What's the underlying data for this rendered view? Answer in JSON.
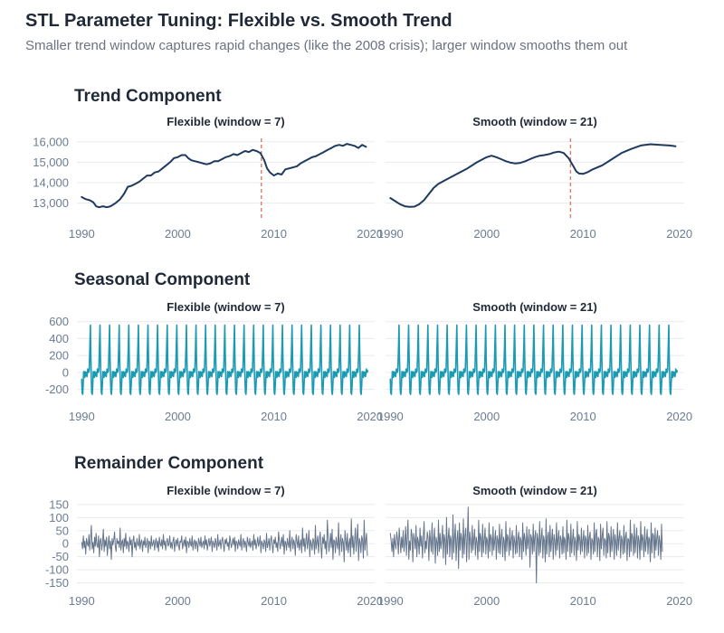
{
  "header": {
    "title": "STL Parameter Tuning: Flexible vs. Smooth Trend",
    "subtitle": "Smaller trend window captures rapid changes (like the 2008 crisis); larger window smooths them out"
  },
  "colors": {
    "trend": "#1e3a5f",
    "seasonal": "#1a9bb3",
    "remainder": "#64748b",
    "crisis_marker": "#e07b6a",
    "grid": "#e8ebef",
    "text": "#1f2937",
    "axis_text": "#6b7c93"
  },
  "chart_data": [
    {
      "id": "trend",
      "type": "line",
      "title": "Trend Component",
      "x_ticks": [
        1990,
        2000,
        2010,
        2020
      ],
      "x_tick_labels": [
        "1990",
        "2000",
        "2010",
        "2020"
      ],
      "xlim": [
        1989.5,
        2020.5
      ],
      "y_ticks": [
        13000,
        14000,
        15000,
        16000
      ],
      "y_tick_labels": [
        "13,000",
        "14,000",
        "15,000",
        "16,000"
      ],
      "ylim": [
        12500,
        16300
      ],
      "vline": 2008.7,
      "series": [
        {
          "name": "Flexible (window = 7)",
          "x": [
            1990,
            1990.4,
            1990.8,
            1991.2,
            1991.5,
            1991.8,
            1992.2,
            1992.6,
            1993.0,
            1993.5,
            1994.0,
            1994.4,
            1994.8,
            1995.2,
            1995.6,
            1996.0,
            1996.4,
            1996.8,
            1997.2,
            1997.6,
            1998.0,
            1998.4,
            1998.8,
            1999.2,
            1999.6,
            2000.0,
            2000.4,
            2000.8,
            2001.1,
            2001.4,
            2001.8,
            2002.2,
            2002.6,
            2003.0,
            2003.4,
            2003.8,
            2004.2,
            2004.6,
            2005.0,
            2005.4,
            2005.8,
            2006.2,
            2006.6,
            2007.0,
            2007.4,
            2007.8,
            2008.2,
            2008.6,
            2009.0,
            2009.3,
            2009.6,
            2010.0,
            2010.4,
            2010.8,
            2011.2,
            2011.6,
            2012.0,
            2012.4,
            2012.8,
            2013.2,
            2013.6,
            2014.0,
            2014.4,
            2014.8,
            2015.2,
            2015.6,
            2016.0,
            2016.4,
            2016.8,
            2017.2,
            2017.6,
            2018.0,
            2018.4,
            2018.8,
            2019.2,
            2019.6
          ],
          "values": [
            13300,
            13200,
            13150,
            13050,
            12850,
            12800,
            12850,
            12800,
            12850,
            13000,
            13200,
            13450,
            13800,
            13850,
            13950,
            14050,
            14200,
            14350,
            14350,
            14500,
            14550,
            14700,
            14850,
            15000,
            15200,
            15250,
            15350,
            15350,
            15200,
            15100,
            15050,
            15000,
            14950,
            14900,
            14950,
            15050,
            15050,
            15150,
            15250,
            15300,
            15400,
            15350,
            15450,
            15550,
            15500,
            15600,
            15550,
            15450,
            15100,
            14700,
            14500,
            14350,
            14450,
            14400,
            14650,
            14700,
            14750,
            14800,
            14950,
            15050,
            15150,
            15250,
            15300,
            15400,
            15500,
            15600,
            15700,
            15800,
            15850,
            15800,
            15900,
            15850,
            15800,
            15700,
            15850,
            15750
          ]
        },
        {
          "name": "Smooth (window = 21)",
          "x": [
            1990,
            1990.5,
            1991.0,
            1991.5,
            1992.0,
            1992.5,
            1993.0,
            1993.5,
            1994.0,
            1994.5,
            1995.0,
            1996.0,
            1997.0,
            1998.0,
            1999.0,
            2000.0,
            2000.5,
            2001.0,
            2001.5,
            2002.0,
            2002.5,
            2003.0,
            2003.5,
            2004.0,
            2004.5,
            2005.0,
            2005.5,
            2006.0,
            2006.5,
            2007.0,
            2007.5,
            2008.0,
            2008.5,
            2009.0,
            2009.3,
            2009.6,
            2010.0,
            2010.5,
            2011.0,
            2012.0,
            2013.0,
            2014.0,
            2015.0,
            2016.0,
            2017.0,
            2018.0,
            2019.0,
            2019.6
          ],
          "values": [
            13250,
            13100,
            12950,
            12850,
            12820,
            12830,
            12950,
            13150,
            13450,
            13750,
            13950,
            14200,
            14450,
            14700,
            15000,
            15250,
            15320,
            15250,
            15150,
            15050,
            14980,
            14940,
            14970,
            15050,
            15150,
            15250,
            15320,
            15350,
            15400,
            15480,
            15520,
            15450,
            15200,
            14800,
            14550,
            14450,
            14430,
            14520,
            14650,
            14850,
            15150,
            15450,
            15650,
            15820,
            15880,
            15850,
            15820,
            15780
          ]
        }
      ]
    },
    {
      "id": "seasonal",
      "type": "line",
      "title": "Seasonal Component",
      "x_ticks": [
        1990,
        2000,
        2010,
        2020
      ],
      "x_tick_labels": [
        "1990",
        "2000",
        "2010",
        "2020"
      ],
      "xlim": [
        1989.5,
        2020.5
      ],
      "y_ticks": [
        -200,
        0,
        200,
        400,
        600
      ],
      "y_tick_labels": [
        "-200",
        "0",
        "200",
        "400",
        "600"
      ],
      "ylim": [
        -280,
        640
      ],
      "cycle_start": 1990,
      "cycle_count": 30,
      "cycle_pattern_t": [
        0,
        0.04,
        0.1,
        0.15,
        0.2,
        0.25,
        0.32,
        0.36,
        0.42,
        0.48,
        0.55,
        0.63,
        0.72,
        0.78,
        0.84,
        0.9,
        0.95,
        1.0
      ],
      "cycle_pattern_v": [
        -80,
        -240,
        -260,
        -150,
        10,
        0,
        -60,
        10,
        -40,
        0,
        -50,
        40,
        0,
        20,
        270,
        560,
        180,
        -80
      ],
      "series": [
        {
          "name": "Flexible (window = 7)"
        },
        {
          "name": "Smooth (window = 21)"
        }
      ]
    },
    {
      "id": "remainder",
      "type": "line",
      "title": "Remainder Component",
      "x_ticks": [
        1990,
        2000,
        2010,
        2020
      ],
      "x_tick_labels": [
        "1990",
        "2000",
        "2010",
        "2020"
      ],
      "xlim": [
        1989.5,
        2020.5
      ],
      "y_ticks": [
        -150,
        -100,
        -50,
        0,
        50,
        100,
        150
      ],
      "y_tick_labels": [
        "-150",
        "-100",
        "-50",
        "0",
        "50",
        "100",
        "150"
      ],
      "ylim": [
        -155,
        160
      ],
      "x_start": 1990,
      "x_step": 0.0833,
      "series": [
        {
          "name": "Flexible (window = 7)",
          "values": [
            5,
            -20,
            30,
            -15,
            10,
            -40,
            20,
            0,
            -10,
            35,
            -25,
            15,
            70,
            -20,
            5,
            -35,
            25,
            -10,
            40,
            -5,
            -15,
            30,
            -50,
            10,
            20,
            -25,
            5,
            55,
            -30,
            15,
            -10,
            25,
            -45,
            0,
            30,
            -20,
            10,
            -60,
            20,
            -5,
            15,
            45,
            -10,
            -30,
            20,
            0,
            10,
            -15,
            60,
            -25,
            5,
            15,
            -35,
            20,
            -10,
            40,
            -20,
            10,
            0,
            -30,
            25,
            -5,
            15,
            -50,
            10,
            30,
            -15,
            5,
            -25,
            20,
            0,
            -10,
            35,
            -20,
            5,
            15,
            -30,
            10,
            -5,
            25,
            -15,
            0,
            20,
            -35,
            10,
            5,
            -20,
            30,
            -10,
            0,
            15,
            -25,
            5,
            20,
            -15,
            10,
            -30,
            25,
            0,
            -10,
            15,
            -20,
            35,
            -5,
            10,
            -25,
            5,
            20,
            -10,
            0,
            30,
            -15,
            5,
            -20,
            10,
            25,
            -30,
            0,
            15,
            -10,
            20,
            -5,
            -25,
            10,
            5,
            30,
            -20,
            0,
            15,
            -10,
            25,
            -35,
            10,
            5,
            -15,
            20,
            0,
            -10,
            30,
            -25,
            5,
            15,
            -20,
            10,
            0,
            -30,
            20,
            5,
            -10,
            25,
            -15,
            0,
            10,
            -20,
            30,
            -5,
            15,
            -25,
            0,
            20,
            -10,
            5,
            25,
            -30,
            10,
            0,
            -15,
            20,
            5,
            -25,
            35,
            -10,
            0,
            15,
            -20,
            10,
            25,
            -5,
            -30,
            15,
            0,
            20,
            -10,
            5,
            -25,
            30,
            10,
            -15,
            0,
            20,
            -5,
            25,
            -30,
            10,
            5,
            -20,
            15,
            0,
            -10,
            35,
            -25,
            5,
            20,
            -15,
            10,
            0,
            -30,
            25,
            5,
            -10,
            20,
            -15,
            0,
            10,
            -25,
            35,
            -5,
            15,
            -20,
            0,
            25,
            -10,
            5,
            30,
            -35,
            10,
            0,
            -20,
            15,
            5,
            -30,
            40,
            -15,
            0,
            20,
            -25,
            10,
            30,
            -5,
            -35,
            15,
            0,
            25,
            -15,
            5,
            -30,
            45,
            10,
            -20,
            0,
            25,
            -10,
            35,
            -40,
            10,
            5,
            -25,
            20,
            0,
            -15,
            50,
            -30,
            5,
            25,
            -20,
            15,
            0,
            -45,
            35,
            10,
            -15,
            30,
            -25,
            0,
            15,
            -35,
            60,
            -10,
            20,
            -30,
            5,
            40,
            -20,
            10,
            50,
            -50,
            15,
            0,
            -25,
            20,
            10,
            -40,
            70,
            -20,
            5,
            30,
            -35,
            15,
            45,
            -10,
            -55,
            25,
            0,
            35,
            -20,
            10,
            -40,
            90,
            20,
            -30,
            5,
            40,
            -15,
            55,
            -60,
            15,
            10,
            -35,
            25,
            0,
            -20,
            80,
            -45,
            10,
            35,
            -30,
            20,
            5,
            -70,
            50,
            15,
            -25,
            40,
            -35,
            0,
            20,
            -50,
            95,
            -15,
            30,
            -40,
            10,
            60,
            -30,
            15,
            75,
            -65,
            20,
            5,
            -35,
            30,
            15,
            -55,
            90,
            -25,
            10,
            40,
            -45,
            20,
            65,
            -15
          ]
        },
        {
          "name": "Smooth (window = 21)",
          "values": [
            40,
            10,
            -30,
            20,
            -50,
            35,
            0,
            -20,
            45,
            15,
            -40,
            60,
            10,
            -35,
            25,
            -15,
            50,
            -30,
            5,
            65,
            -45,
            20,
            90,
            -60,
            10,
            -25,
            55,
            30,
            -70,
            40,
            15,
            -20,
            70,
            -50,
            25,
            5,
            -40,
            60,
            -10,
            30,
            -55,
            20,
            85,
            -35,
            10,
            -20,
            45,
            25,
            -65,
            50,
            10,
            -30,
            80,
            -40,
            15,
            60,
            -75,
            25,
            5,
            -45,
            90,
            -30,
            40,
            -20,
            10,
            70,
            -55,
            35,
            15,
            -80,
            100,
            -40,
            20,
            60,
            -50,
            30,
            10,
            -60,
            110,
            -35,
            25,
            75,
            -65,
            15,
            50,
            -95,
            80,
            -25,
            40,
            20,
            -55,
            95,
            -40,
            30,
            60,
            -70,
            20,
            140,
            -60,
            45,
            10,
            -35,
            70,
            -25,
            15,
            55,
            -45,
            25,
            5,
            -60,
            90,
            -30,
            40,
            20,
            -50,
            75,
            -35,
            15,
            60,
            -40,
            25,
            10,
            -55,
            80,
            -30,
            35,
            20,
            -45,
            65,
            -25,
            10,
            50,
            -60,
            30,
            15,
            -35,
            75,
            -40,
            20,
            55,
            -50,
            25,
            10,
            -65,
            85,
            -30,
            35,
            20,
            -45,
            60,
            -25,
            15,
            50,
            -55,
            30,
            5,
            -40,
            70,
            -35,
            20,
            45,
            -50,
            25,
            10,
            -60,
            80,
            -30,
            40,
            15,
            -45,
            65,
            -20,
            10,
            55,
            -90,
            35,
            20,
            -40,
            75,
            -30,
            25,
            50,
            -150,
            40,
            15,
            -45,
            85,
            -35,
            20,
            60,
            -55,
            30,
            10,
            -70,
            95,
            -40,
            25,
            45,
            -50,
            70,
            -30,
            15,
            55,
            -60,
            35,
            10,
            -45,
            80,
            -25,
            20,
            50,
            -55,
            30,
            15,
            -40,
            65,
            -35,
            25,
            10,
            -60,
            90,
            -30,
            40,
            20,
            -50,
            75,
            -35,
            15,
            55,
            -45,
            25,
            5,
            -65,
            85,
            -25,
            35,
            20,
            -40,
            60,
            -30,
            10,
            50,
            -55,
            30,
            15,
            -45,
            70,
            -35,
            25,
            45,
            -60,
            20,
            10,
            -40,
            80,
            -30,
            35,
            55,
            -50,
            25,
            15,
            -65,
            75,
            -20,
            30,
            60,
            -45,
            20,
            10,
            -55,
            85,
            -35,
            40,
            25,
            -50,
            65,
            -30,
            15,
            55,
            -60,
            35,
            5,
            -45,
            80,
            -25,
            20,
            50,
            -55,
            30,
            10,
            -40,
            70,
            -35,
            25,
            45,
            -65,
            20,
            15,
            -50,
            90,
            -30,
            40,
            25,
            -45,
            75,
            -35,
            15,
            60,
            -55,
            30,
            10,
            -60,
            85,
            -25,
            35,
            20,
            -50,
            65,
            -30,
            10,
            55,
            -40,
            25,
            15,
            -70,
            80,
            -35,
            40,
            30,
            -55,
            60,
            -25,
            20,
            50,
            -45,
            30,
            5,
            -60,
            75,
            -30
          ]
        }
      ]
    }
  ]
}
